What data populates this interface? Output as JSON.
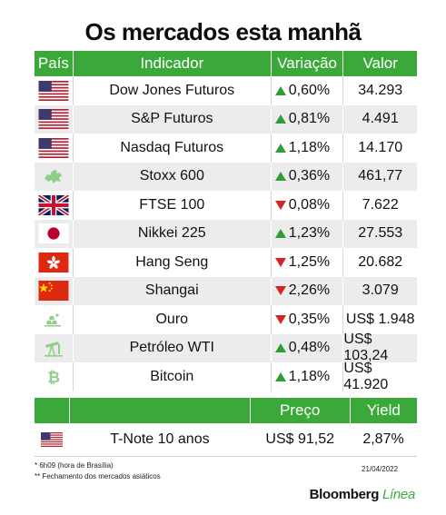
{
  "title": "Os mercados esta manhã",
  "headers": {
    "country": "País",
    "indicator": "Indicador",
    "change": "Variação",
    "value": "Valor"
  },
  "rows": [
    {
      "indicator": "Dow Jones Futuros",
      "change": "0,60%",
      "direction": "up",
      "value": "34.293",
      "icon": "us-flag-icon"
    },
    {
      "indicator": "S&P Futuros",
      "change": "0,81%",
      "direction": "up",
      "value": "4.491",
      "icon": "us-flag-icon"
    },
    {
      "indicator": "Nasdaq Futuros",
      "change": "1,18%",
      "direction": "up",
      "value": "14.170",
      "icon": "us-flag-icon"
    },
    {
      "indicator": "Stoxx 600",
      "change": "0,36%",
      "direction": "up",
      "value": "461,77",
      "icon": "europe-map-icon"
    },
    {
      "indicator": "FTSE 100",
      "change": "0,08%",
      "direction": "down",
      "value": "7.622",
      "icon": "uk-flag-icon"
    },
    {
      "indicator": "Nikkei 225",
      "change": "1,23%",
      "direction": "up",
      "value": "27.553",
      "icon": "japan-flag-icon"
    },
    {
      "indicator": "Hang Seng",
      "change": "1,25%",
      "direction": "down",
      "value": "20.682",
      "icon": "hong-kong-flag-icon"
    },
    {
      "indicator": "Shangai",
      "change": "2,26%",
      "direction": "down",
      "value": "3.079",
      "icon": "china-flag-icon"
    },
    {
      "indicator": "Ouro",
      "change": "0,35%",
      "direction": "down",
      "value": "US$ 1.948",
      "icon": "gold-bars-icon"
    },
    {
      "indicator": "Petróleo WTI",
      "change": "0,48%",
      "direction": "up",
      "value": "US$ 103,24",
      "icon": "oil-pump-icon"
    },
    {
      "indicator": "Bitcoin",
      "change": "1,18%",
      "direction": "up",
      "value": "US$ 41.920",
      "icon": "bitcoin-icon"
    }
  ],
  "bonds": {
    "headers": {
      "price": "Preço",
      "yield": "Yield"
    },
    "row": {
      "indicator": "T-Note 10 anos",
      "price": "US$ 91,52",
      "yield": "2,87%",
      "icon": "us-flag-icon"
    }
  },
  "footnotes": {
    "note1": "* 6h09 (hora de Brasília)",
    "note2": "** Fechamento dos mercados asiáticos",
    "date": "21/04/2022"
  },
  "brand": {
    "name": "Bloomberg",
    "suffix": "Línea"
  },
  "colors": {
    "header_green": "#3aa93a",
    "up": "#2e9d33",
    "down": "#d62525",
    "alt_row": "#ececec"
  }
}
